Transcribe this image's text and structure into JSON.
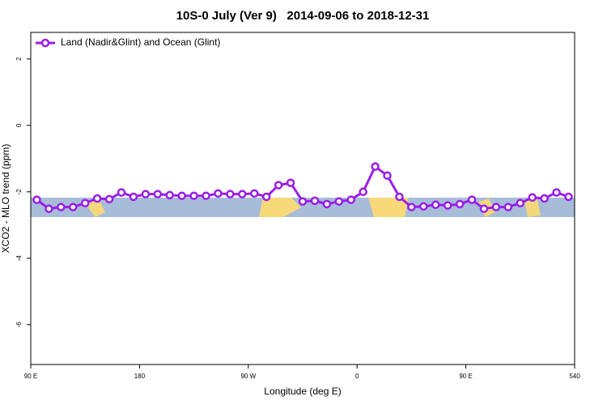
{
  "chart_data": {
    "type": "line",
    "title": "10S-0 July (Ver 9)   2014-09-06 to 2018-12-31",
    "x_label": "Longitude (deg E)",
    "y_label": "XCO2 - MLO trend (ppm)",
    "x": [
      95,
      105,
      115,
      125,
      135,
      145,
      155,
      165,
      175,
      185,
      195,
      205,
      215,
      225,
      235,
      245,
      255,
      265,
      275,
      285,
      295,
      305,
      315,
      325,
      335,
      345,
      355,
      365,
      375,
      385,
      395,
      405,
      415,
      425,
      435,
      445,
      455,
      465,
      475,
      485,
      495,
      505,
      515,
      525,
      535
    ],
    "series": [
      {
        "name": "Land (Nadir&Glint) and Ocean (Glint)",
        "color": "#9a1ee6",
        "values": [
          -2.24,
          -2.51,
          -2.46,
          -2.46,
          -2.34,
          -2.2,
          -2.22,
          -2.02,
          -2.15,
          -2.07,
          -2.07,
          -2.1,
          -2.12,
          -2.12,
          -2.12,
          -2.05,
          -2.07,
          -2.07,
          -2.05,
          -2.15,
          -1.8,
          -1.73,
          -2.29,
          -2.27,
          -2.37,
          -2.29,
          -2.24,
          -2.0,
          -1.24,
          -1.51,
          -2.15,
          -2.46,
          -2.44,
          -2.39,
          -2.41,
          -2.37,
          -2.24,
          -2.51,
          -2.46,
          -2.46,
          -2.34,
          -2.17,
          -2.2,
          -2.02,
          -2.15
        ]
      }
    ],
    "xlim": [
      90,
      540
    ],
    "xticks": [
      {
        "value": 90,
        "label": "90 E"
      },
      180,
      {
        "value": 270,
        "label": "90 W"
      },
      {
        "value": 360,
        "label": "0"
      },
      {
        "value": 450,
        "label": "90 E"
      },
      540
    ],
    "ylim": [
      -7.2,
      2.8
    ],
    "yticks": [
      2,
      0,
      -2,
      -4,
      -6
    ],
    "legend": "top-left"
  }
}
